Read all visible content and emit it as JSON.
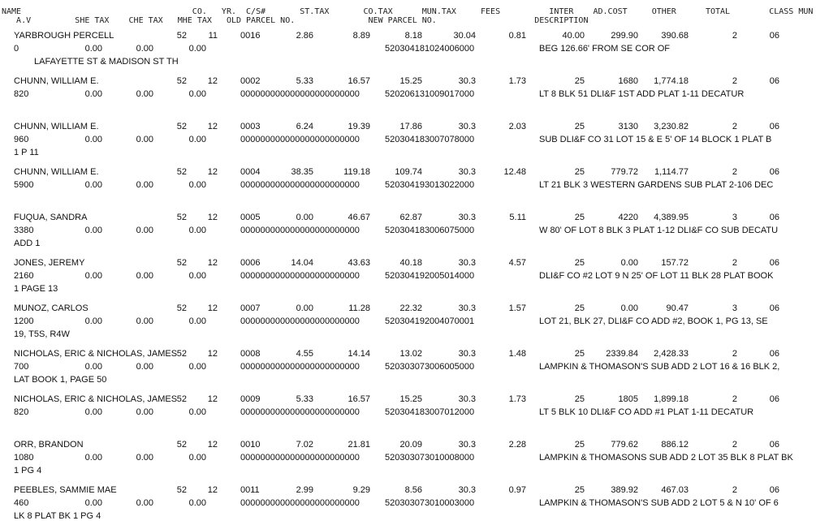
{
  "header": {
    "line1": "NAME                                   CO.   YR.  C/S#       ST.TAX       CO.TAX      MUN.TAX     FEES          INTER    AD.COST     OTHER      TOTAL        CLASS MUN CD",
    "line2": "   A.V         SHE TAX    CHE TAX   MHE TAX   OLD PARCEL NO.               NEW PARCEL NO.                    DESCRIPTION"
  },
  "records": [
    {
      "name": "YARBROUGH PERCELL",
      "co": "52",
      "yr": "11",
      "cs": "0016",
      "st_tax": "2.86",
      "co_tax": "8.89",
      "mun_tax": "8.18",
      "fees": "30.04",
      "inter": "0.81",
      "ad_cost": "40.00",
      "other": "299.90",
      "total": "390.68",
      "class": "2",
      "mun_cd": "06",
      "av": "0",
      "she_tax": "0.00",
      "che_tax": "0.00",
      "mhe_tax": "0.00",
      "old_parcel": "",
      "new_parcel": "520304181024006000",
      "desc": "BEG 126.66' FROM SE COR OF",
      "desc2": "LAFAYETTE ST & MADISON ST TH"
    },
    {
      "name": "CHUNN, WILLIAM E.",
      "co": "52",
      "yr": "12",
      "cs": "0002",
      "st_tax": "5.33",
      "co_tax": "16.57",
      "mun_tax": "15.25",
      "fees": "30.3",
      "inter": "1.73",
      "ad_cost": "25",
      "other": "1680",
      "total": "1,774.18",
      "class": "2",
      "mun_cd": "06",
      "av": "820",
      "she_tax": "0.00",
      "che_tax": "0.00",
      "mhe_tax": "0.00",
      "old_parcel": "000000000000000000000000",
      "new_parcel": "520206131009017000",
      "desc": "LT 8 BLK 51 DLI&F 1ST ADD PLAT 1-11 DECATUR",
      "desc2": ""
    },
    {
      "name": "CHUNN, WILLIAM E.",
      "co": "52",
      "yr": "12",
      "cs": "0003",
      "st_tax": "6.24",
      "co_tax": "19.39",
      "mun_tax": "17.86",
      "fees": "30.3",
      "inter": "2.03",
      "ad_cost": "25",
      "other": "3130",
      "total": "3,230.82",
      "class": "2",
      "mun_cd": "06",
      "av": "960",
      "she_tax": "0.00",
      "che_tax": "0.00",
      "mhe_tax": "0.00",
      "old_parcel": "000000000000000000000000",
      "new_parcel": "520304183007078000",
      "desc": "SUB DLI&F CO 31 LOT 15 & E 5' OF 14 BLOCK 1 PLAT B",
      "desc2": "1 P 11"
    },
    {
      "name": "CHUNN, WILLIAM E.",
      "co": "52",
      "yr": "12",
      "cs": "0004",
      "st_tax": "38.35",
      "co_tax": "119.18",
      "mun_tax": "109.74",
      "fees": "30.3",
      "inter": "12.48",
      "ad_cost": "25",
      "other": "779.72",
      "total": "1,114.77",
      "class": "2",
      "mun_cd": "06",
      "av": "5900",
      "she_tax": "0.00",
      "che_tax": "0.00",
      "mhe_tax": "0.00",
      "old_parcel": "000000000000000000000000",
      "new_parcel": "520304193013022000",
      "desc": "LT 21 BLK 3 WESTERN GARDENS SUB PLAT 2-106 DEC",
      "desc2": ""
    },
    {
      "name": "FUQUA, SANDRA",
      "co": "52",
      "yr": "12",
      "cs": "0005",
      "st_tax": "0.00",
      "co_tax": "46.67",
      "mun_tax": "62.87",
      "fees": "30.3",
      "inter": "5.11",
      "ad_cost": "25",
      "other": "4220",
      "total": "4,389.95",
      "class": "3",
      "mun_cd": "06",
      "av": "3380",
      "she_tax": "0.00",
      "che_tax": "0.00",
      "mhe_tax": "0.00",
      "old_parcel": "000000000000000000000000",
      "new_parcel": "520304183006075000",
      "desc": "W 80' OF LOT 8 BLK 3 PLAT 1-12 DLI&F CO SUB DECATU",
      "desc2": "ADD 1"
    },
    {
      "name": "JONES, JEREMY",
      "co": "52",
      "yr": "12",
      "cs": "0006",
      "st_tax": "14.04",
      "co_tax": "43.63",
      "mun_tax": "40.18",
      "fees": "30.3",
      "inter": "4.57",
      "ad_cost": "25",
      "other": "0.00",
      "total": "157.72",
      "class": "2",
      "mun_cd": "06",
      "av": "2160",
      "she_tax": "0.00",
      "che_tax": "0.00",
      "mhe_tax": "0.00",
      "old_parcel": "000000000000000000000000",
      "new_parcel": "520304192005014000",
      "desc": "DLI&F CO #2 LOT 9 N 25' OF LOT 11 BLK 28 PLAT BOOK",
      "desc2": "1 PAGE 13"
    },
    {
      "name": "MUNOZ, CARLOS",
      "co": "52",
      "yr": "12",
      "cs": "0007",
      "st_tax": "0.00",
      "co_tax": "11.28",
      "mun_tax": "22.32",
      "fees": "30.3",
      "inter": "1.57",
      "ad_cost": "25",
      "other": "0.00",
      "total": "90.47",
      "class": "3",
      "mun_cd": "06",
      "av": "1200",
      "she_tax": "0.00",
      "che_tax": "0.00",
      "mhe_tax": "0.00",
      "old_parcel": "000000000000000000000000",
      "new_parcel": "520304192004070001",
      "desc": "LOT 21, BLK 27, DLI&F CO ADD #2, BOOK 1, PG 13, SE",
      "desc2": "19, T5S, R4W"
    },
    {
      "name": "NICHOLAS, ERIC & NICHOLAS, JAMES",
      "co": "52",
      "yr": "12",
      "cs": "0008",
      "st_tax": "4.55",
      "co_tax": "14.14",
      "mun_tax": "13.02",
      "fees": "30.3",
      "inter": "1.48",
      "ad_cost": "25",
      "other": "2339.84",
      "total": "2,428.33",
      "class": "2",
      "mun_cd": "06",
      "av": "700",
      "she_tax": "0.00",
      "che_tax": "0.00",
      "mhe_tax": "0.00",
      "old_parcel": "000000000000000000000000",
      "new_parcel": "520303073006005000",
      "desc": "LAMPKIN & THOMASON'S SUB ADD 2 LOT 16 & 16 BLK 2,",
      "desc2": "LAT BOOK 1, PAGE 50"
    },
    {
      "name": "NICHOLAS, ERIC & NICHOLAS, JAMES",
      "co": "52",
      "yr": "12",
      "cs": "0009",
      "st_tax": "5.33",
      "co_tax": "16.57",
      "mun_tax": "15.25",
      "fees": "30.3",
      "inter": "1.73",
      "ad_cost": "25",
      "other": "1805",
      "total": "1,899.18",
      "class": "2",
      "mun_cd": "06",
      "av": "820",
      "she_tax": "0.00",
      "che_tax": "0.00",
      "mhe_tax": "0.00",
      "old_parcel": "000000000000000000000000",
      "new_parcel": "520304183007012000",
      "desc": "LT 5 BLK 10 DLI&F CO ADD #1 PLAT 1-11 DECATUR",
      "desc2": ""
    },
    {
      "name": "ORR, BRANDON",
      "co": "52",
      "yr": "12",
      "cs": "0010",
      "st_tax": "7.02",
      "co_tax": "21.81",
      "mun_tax": "20.09",
      "fees": "30.3",
      "inter": "2.28",
      "ad_cost": "25",
      "other": "779.62",
      "total": "886.12",
      "class": "2",
      "mun_cd": "06",
      "av": "1080",
      "she_tax": "0.00",
      "che_tax": "0.00",
      "mhe_tax": "0.00",
      "old_parcel": "000000000000000000000000",
      "new_parcel": "520303073010008000",
      "desc": "LAMPKIN & THOMASONS SUB ADD 2 LOT 35 BLK 8 PLAT BK",
      "desc2": "1 PG 4"
    },
    {
      "name": "PEEBLES, SAMMIE MAE",
      "co": "52",
      "yr": "12",
      "cs": "0011",
      "st_tax": "2.99",
      "co_tax": "9.29",
      "mun_tax": "8.56",
      "fees": "30.3",
      "inter": "0.97",
      "ad_cost": "25",
      "other": "389.92",
      "total": "467.03",
      "class": "2",
      "mun_cd": "06",
      "av": "460",
      "she_tax": "0.00",
      "che_tax": "0.00",
      "mhe_tax": "0.00",
      "old_parcel": "000000000000000000000000",
      "new_parcel": "520303073010003000",
      "desc": "LAMPKIN & THOMASON'S SUB ADD 2 LOT 5 & N 10' OF 6",
      "desc2": "LK 8 PLAT BK 1 PG 4"
    }
  ]
}
